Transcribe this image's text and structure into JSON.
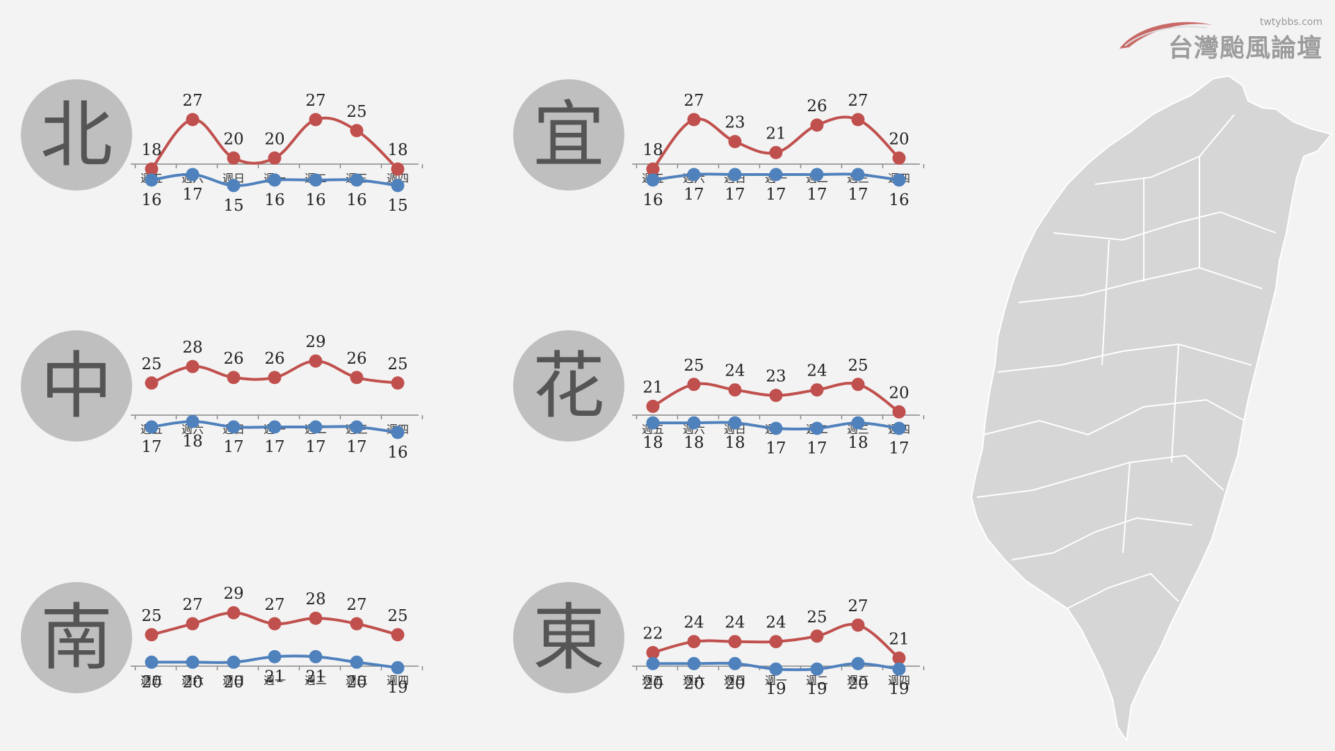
{
  "logo": {
    "site": "twtybbs.com",
    "name": "台灣颱風論壇"
  },
  "colors": {
    "high": "#c0504d",
    "low": "#4f81bd",
    "axis": "#888888",
    "circle": "#bfbfbf",
    "map": "#d6d6d6"
  },
  "regions": [
    {
      "label": "北"
    },
    {
      "label": "宜"
    },
    {
      "label": "中"
    },
    {
      "label": "花"
    },
    {
      "label": "南"
    },
    {
      "label": "東"
    }
  ],
  "chart_data": [
    {
      "type": "line",
      "categories": [
        "週五",
        "週六",
        "週日",
        "週一",
        "週二",
        "週三",
        "週四"
      ],
      "series": [
        {
          "values": [
            18,
            27,
            20,
            20,
            27,
            25,
            18
          ]
        },
        {
          "values": [
            16,
            17,
            15,
            16,
            16,
            16,
            15
          ]
        }
      ]
    },
    {
      "type": "line",
      "categories": [
        "週五",
        "週六",
        "週日",
        "週一",
        "週二",
        "週三",
        "週四"
      ],
      "series": [
        {
          "values": [
            18,
            27,
            23,
            21,
            26,
            27,
            20
          ]
        },
        {
          "values": [
            16,
            17,
            17,
            17,
            17,
            17,
            16
          ]
        }
      ]
    },
    {
      "type": "line",
      "categories": [
        "週五",
        "週六",
        "週日",
        "週一",
        "週二",
        "週三",
        "週四"
      ],
      "series": [
        {
          "values": [
            25,
            28,
            26,
            26,
            29,
            26,
            25
          ]
        },
        {
          "values": [
            17,
            18,
            17,
            17,
            17,
            17,
            16
          ]
        }
      ]
    },
    {
      "type": "line",
      "categories": [
        "週五",
        "週六",
        "週日",
        "週一",
        "週二",
        "週三",
        "週四"
      ],
      "series": [
        {
          "values": [
            21,
            25,
            24,
            23,
            24,
            25,
            20
          ]
        },
        {
          "values": [
            18,
            18,
            18,
            17,
            17,
            18,
            17
          ]
        }
      ]
    },
    {
      "type": "line",
      "categories": [
        "週五",
        "週六",
        "週日",
        "週一",
        "週二",
        "週三",
        "週四"
      ],
      "series": [
        {
          "values": [
            25,
            27,
            29,
            27,
            28,
            27,
            25
          ]
        },
        {
          "values": [
            20,
            20,
            20,
            21,
            21,
            20,
            19
          ]
        }
      ]
    },
    {
      "type": "line",
      "categories": [
        "週五",
        "週六",
        "週日",
        "週一",
        "週二",
        "週三",
        "週四"
      ],
      "series": [
        {
          "values": [
            22,
            24,
            24,
            24,
            25,
            27,
            21
          ]
        },
        {
          "values": [
            20,
            20,
            20,
            19,
            19,
            20,
            19
          ]
        }
      ]
    }
  ]
}
